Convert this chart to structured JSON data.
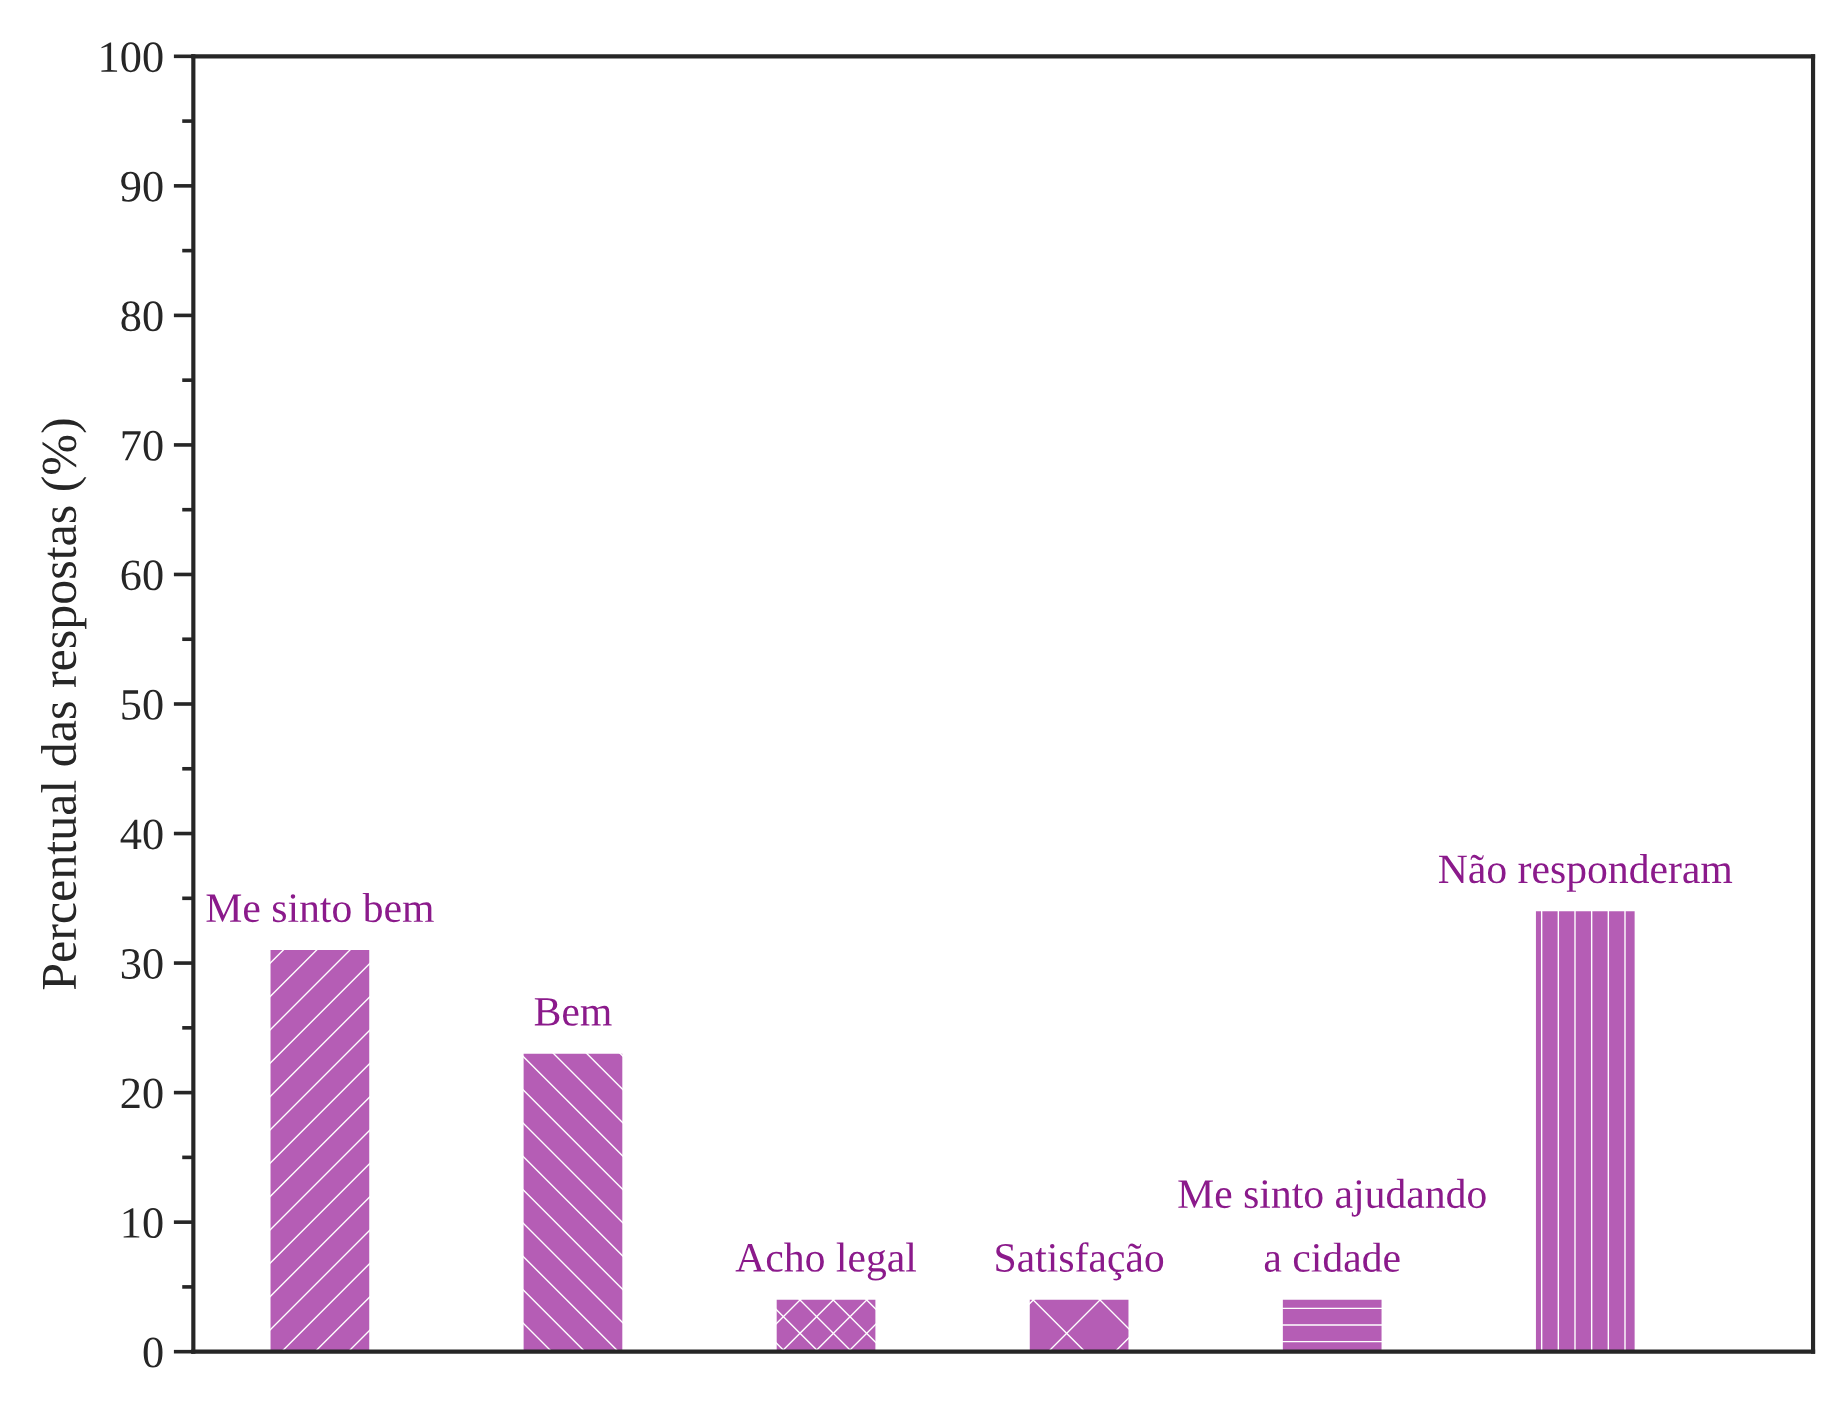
{
  "chart_data": {
    "type": "bar",
    "ylabel": "Percentual das respostas (%)",
    "categories": [
      "Me sinto bem",
      "Bem",
      "Acho legal",
      "Satisfação",
      "Me sinto ajudando\na cidade",
      "Não responderam"
    ],
    "values": [
      31,
      23,
      4,
      4,
      4,
      34
    ],
    "color": "#b55db5",
    "ylim": [
      0,
      100
    ],
    "yticks": [
      0,
      10,
      20,
      30,
      40,
      50,
      60,
      70,
      80,
      90,
      100
    ],
    "grid": false
  }
}
